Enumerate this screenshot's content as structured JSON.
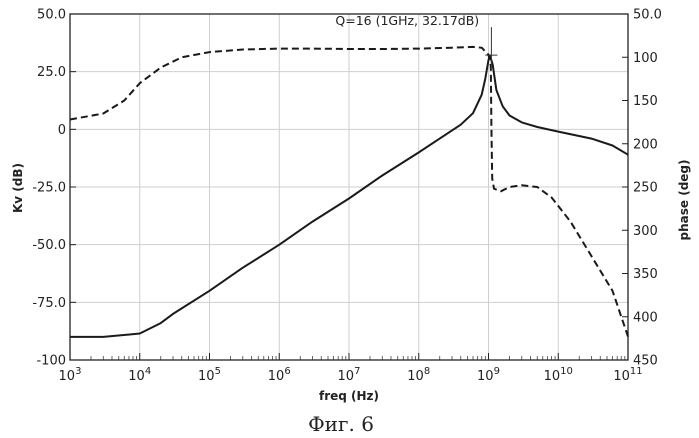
{
  "chart_data": {
    "type": "line",
    "xlabel": "freq (Hz)",
    "ylabel_left": "Kv (dB)",
    "ylabel_right": "phase (deg)",
    "x_scale": "log",
    "xlim": [
      1000,
      100000000000
    ],
    "ylim_left": [
      -100,
      50
    ],
    "ylim_right": [
      450,
      50
    ],
    "x_ticks": [
      {
        "value": 1000,
        "base": "10",
        "exp": "3"
      },
      {
        "value": 10000,
        "base": "10",
        "exp": "4"
      },
      {
        "value": 100000,
        "base": "10",
        "exp": "5"
      },
      {
        "value": 1000000,
        "base": "10",
        "exp": "6"
      },
      {
        "value": 10000000,
        "base": "10",
        "exp": "7"
      },
      {
        "value": 100000000,
        "base": "10",
        "exp": "8"
      },
      {
        "value": 1000000000,
        "base": "10",
        "exp": "9"
      },
      {
        "value": 10000000000,
        "base": "10",
        "exp": "10"
      },
      {
        "value": 100000000000,
        "base": "10",
        "exp": "11"
      }
    ],
    "y_ticks_left": [
      {
        "value": 50,
        "label": "50.0"
      },
      {
        "value": 25,
        "label": "25.0"
      },
      {
        "value": 0,
        "label": "0"
      },
      {
        "value": -25,
        "label": "-25.0"
      },
      {
        "value": -50,
        "label": "-50.0"
      },
      {
        "value": -75,
        "label": "-75.0"
      },
      {
        "value": -100,
        "label": "-100"
      }
    ],
    "y_ticks_right": [
      {
        "value": 50,
        "label": "50.0"
      },
      {
        "value": 100,
        "label": "100"
      },
      {
        "value": 150,
        "label": "150"
      },
      {
        "value": 200,
        "label": "200"
      },
      {
        "value": 250,
        "label": "250"
      },
      {
        "value": 300,
        "label": "300"
      },
      {
        "value": 350,
        "label": "350"
      },
      {
        "value": 400,
        "label": "400"
      },
      {
        "value": 450,
        "label": "450"
      }
    ],
    "grid": true,
    "series": [
      {
        "axis": "left",
        "style": "solid",
        "points": [
          [
            1000,
            -90
          ],
          [
            3000,
            -90
          ],
          [
            10000,
            -88.5
          ],
          [
            20000,
            -84
          ],
          [
            30000,
            -80
          ],
          [
            100000,
            -70
          ],
          [
            300000,
            -60
          ],
          [
            1000000,
            -50
          ],
          [
            3000000,
            -40
          ],
          [
            10000000,
            -30
          ],
          [
            30000000,
            -20
          ],
          [
            100000000,
            -10
          ],
          [
            200000000,
            -4
          ],
          [
            400000000,
            2
          ],
          [
            600000000,
            7
          ],
          [
            800000000,
            15
          ],
          [
            900000000,
            22
          ],
          [
            1000000000,
            30
          ],
          [
            1050000000,
            32
          ],
          [
            1150000000,
            28
          ],
          [
            1300000000,
            17
          ],
          [
            1600000000,
            10
          ],
          [
            2000000000,
            6
          ],
          [
            3000000000,
            3
          ],
          [
            5000000000,
            1
          ],
          [
            10000000000,
            -1
          ],
          [
            30000000000,
            -4
          ],
          [
            60000000000,
            -7
          ],
          [
            100000000000,
            -11
          ]
        ]
      },
      {
        "axis": "right",
        "style": "dashed",
        "points": [
          [
            1000,
            172
          ],
          [
            3000,
            165
          ],
          [
            6000,
            150
          ],
          [
            10000,
            130
          ],
          [
            20000,
            112
          ],
          [
            40000,
            100
          ],
          [
            100000,
            94
          ],
          [
            300000,
            91
          ],
          [
            1000000,
            90
          ],
          [
            3000000,
            90
          ],
          [
            10000000,
            90.5
          ],
          [
            30000000,
            90.5
          ],
          [
            100000000,
            90
          ],
          [
            300000000,
            89
          ],
          [
            600000000,
            88
          ],
          [
            800000000,
            89
          ],
          [
            1000000000,
            97
          ],
          [
            1080000000,
            110
          ],
          [
            1100000000,
            180
          ],
          [
            1130000000,
            240
          ],
          [
            1200000000,
            252
          ],
          [
            1500000000,
            255
          ],
          [
            2000000000,
            250
          ],
          [
            3000000000,
            248
          ],
          [
            5000000000,
            250
          ],
          [
            8000000000,
            262
          ],
          [
            15000000000,
            290
          ],
          [
            30000000000,
            330
          ],
          [
            60000000000,
            370
          ],
          [
            100000000000,
            423
          ]
        ]
      }
    ],
    "annotation": {
      "text": "Q=16 (1GHz, 32.17dB)",
      "x": 1100000000,
      "y": 32.17
    },
    "caption": "Фиг. 6"
  }
}
